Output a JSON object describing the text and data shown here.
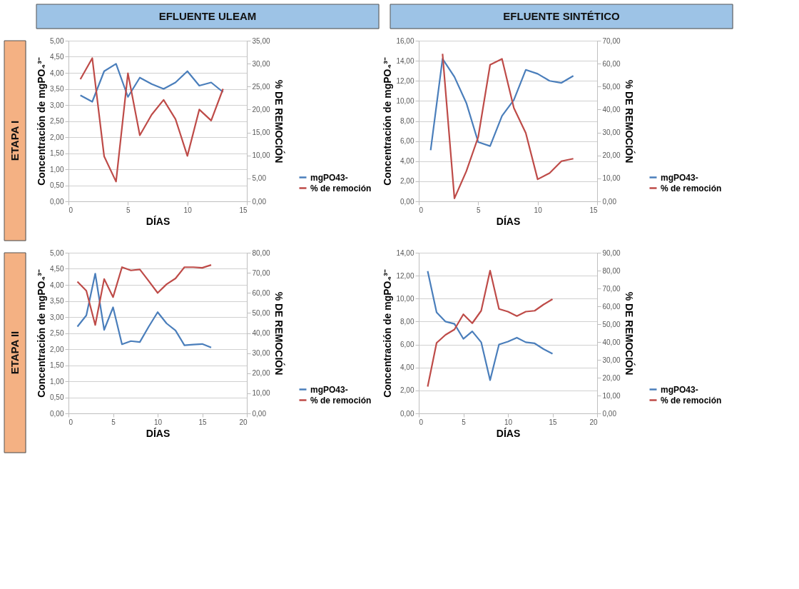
{
  "chart_data": [
    {
      "type": "line",
      "title": "EFLUENTE ULEAM",
      "subtitle": "ETAPA I",
      "xlabel": "DÍAS",
      "ylabel": "Concentración de mgPO₄³⁻",
      "y2label": "% DE REMOCIÓN",
      "grid": "y",
      "legend": "bottom right",
      "x": [
        1,
        2,
        3,
        4,
        5,
        6,
        7,
        8,
        9,
        10,
        11,
        12,
        13
      ],
      "xlim": [
        0,
        15
      ],
      "xticks": [
        0,
        5,
        10,
        15
      ],
      "ylim": [
        0,
        5
      ],
      "yticks": [
        {
          "value": 0,
          "label": "0,00"
        },
        {
          "value": 0.5,
          "label": "0,50"
        },
        {
          "value": 1,
          "label": "1,00"
        },
        {
          "value": 1.5,
          "label": "1,50"
        },
        {
          "value": 2,
          "label": "2,00"
        },
        {
          "value": 2.5,
          "label": "2,50"
        },
        {
          "value": 3,
          "label": "3,00"
        },
        {
          "value": 3.5,
          "label": "3,50"
        },
        {
          "value": 4,
          "label": "4,00"
        },
        {
          "value": 4.5,
          "label": "4,50"
        },
        {
          "value": 5,
          "label": "5,00"
        }
      ],
      "y2lim": [
        0,
        35
      ],
      "y2ticks": [
        {
          "value": 0,
          "label": "0,00"
        },
        {
          "value": 5,
          "label": "5,00"
        },
        {
          "value": 10,
          "label": "10,00"
        },
        {
          "value": 15,
          "label": "15,00"
        },
        {
          "value": 20,
          "label": "20,00"
        },
        {
          "value": 25,
          "label": "25,00"
        },
        {
          "value": 30,
          "label": "30,00"
        },
        {
          "value": 35,
          "label": "35,00"
        }
      ],
      "series": [
        {
          "name": "mgPO43-",
          "color": "#4a7ebb",
          "values": [
            3.3,
            3.1,
            4.05,
            4.28,
            3.25,
            3.85,
            3.65,
            3.5,
            3.7,
            4.05,
            3.6,
            3.7,
            3.4
          ]
        },
        {
          "name": "% de remoción",
          "color": "#be4b48",
          "axis": "y2",
          "values": [
            26.6,
            31.2,
            9.8,
            4.3,
            27.9,
            14.4,
            18.9,
            22.1,
            17.9,
            9.9,
            20.0,
            17.6,
            24.5
          ]
        }
      ]
    },
    {
      "type": "line",
      "title": "EFLUENTE SINTÉTICO",
      "xlabel": "DÍAS",
      "ylabel": "Concentración de mgPO₄³⁻",
      "y2label": "% DE REMOCIÓN",
      "grid": "y",
      "legend": "bottom right",
      "x": [
        1,
        2,
        3,
        4,
        5,
        6,
        7,
        8,
        9,
        10,
        11,
        12,
        13
      ],
      "xlim": [
        0,
        15
      ],
      "xticks": [
        0,
        5,
        10,
        15
      ],
      "ylim": [
        0,
        16
      ],
      "yticks": [
        {
          "value": 0,
          "label": "0,00"
        },
        {
          "value": 2,
          "label": "2,00"
        },
        {
          "value": 4,
          "label": "4,00"
        },
        {
          "value": 6,
          "label": "6,00"
        },
        {
          "value": 8,
          "label": "8,00"
        },
        {
          "value": 10,
          "label": "10,00"
        },
        {
          "value": 12,
          "label": "12,00"
        },
        {
          "value": 14,
          "label": "14,00"
        },
        {
          "value": 16,
          "label": "16,00"
        }
      ],
      "y2lim": [
        0,
        70
      ],
      "y2ticks": [
        {
          "value": 0,
          "label": "0,00"
        },
        {
          "value": 10,
          "label": "10,00"
        },
        {
          "value": 20,
          "label": "20,00"
        },
        {
          "value": 30,
          "label": "30,00"
        },
        {
          "value": 40,
          "label": "40,00"
        },
        {
          "value": 50,
          "label": "50,00"
        },
        {
          "value": 60,
          "label": "60,00"
        },
        {
          "value": 70,
          "label": "70,00"
        }
      ],
      "series": [
        {
          "name": "mgPO43-",
          "color": "#4a7ebb",
          "values": [
            5.1,
            14.2,
            12.4,
            9.8,
            5.9,
            5.5,
            8.5,
            10.1,
            13.1,
            12.7,
            12.0,
            11.8,
            12.5
          ]
        },
        {
          "name": "% de remoción",
          "color": "#be4b48",
          "axis": "y2",
          "x": [
            2,
            3,
            4,
            5,
            6,
            7,
            8,
            9,
            10,
            11,
            12,
            13
          ],
          "values": [
            64.3,
            1.3,
            13.1,
            28,
            59.5,
            62.1,
            40.7,
            29.8,
            9.6,
            12.3,
            17.5,
            18.6
          ]
        }
      ]
    },
    {
      "type": "line",
      "subtitle": "ETAPA II",
      "xlabel": "DÍAS",
      "ylabel": "Concentración de mgPO₄³⁻",
      "y2label": "% DE REMOCIÓN",
      "grid": "y",
      "legend": "bottom right",
      "x": [
        1,
        2,
        3,
        4,
        5,
        6,
        7,
        8,
        9,
        10,
        11,
        12,
        13,
        14,
        15,
        16
      ],
      "xlim": [
        0,
        20
      ],
      "xticks": [
        0,
        5,
        10,
        15,
        20
      ],
      "ylim": [
        0,
        5
      ],
      "yticks": [
        {
          "value": 0,
          "label": "0,00"
        },
        {
          "value": 0.5,
          "label": "0,50"
        },
        {
          "value": 1,
          "label": "1,00"
        },
        {
          "value": 1.5,
          "label": "1,50"
        },
        {
          "value": 2,
          "label": "2,00"
        },
        {
          "value": 2.5,
          "label": "2,50"
        },
        {
          "value": 3,
          "label": "3,00"
        },
        {
          "value": 3.5,
          "label": "3,50"
        },
        {
          "value": 4,
          "label": "4,00"
        },
        {
          "value": 4.5,
          "label": "4,50"
        },
        {
          "value": 5,
          "label": "5,00"
        }
      ],
      "y2lim": [
        0,
        80
      ],
      "y2ticks": [
        {
          "value": 0,
          "label": "0,00"
        },
        {
          "value": 10,
          "label": "10,00"
        },
        {
          "value": 20,
          "label": "20,00"
        },
        {
          "value": 30,
          "label": "30,00"
        },
        {
          "value": 40,
          "label": "40,00"
        },
        {
          "value": 50,
          "label": "50,00"
        },
        {
          "value": 60,
          "label": "60,00"
        },
        {
          "value": 70,
          "label": "70,00"
        },
        {
          "value": 80,
          "label": "80,00"
        }
      ],
      "series": [
        {
          "name": "mgPO43-",
          "color": "#4a7ebb",
          "values": [
            2.7,
            3.05,
            4.35,
            2.6,
            3.3,
            2.15,
            2.25,
            2.22,
            2.7,
            3.15,
            2.8,
            2.58,
            2.12,
            2.14,
            2.16,
            2.05
          ]
        },
        {
          "name": "% de remoción",
          "color": "#be4b48",
          "axis": "y2",
          "values": [
            65.6,
            61.1,
            44.0,
            66.9,
            57.9,
            72.8,
            71.2,
            71.7,
            65.9,
            60.0,
            64.3,
            67.2,
            72.8,
            72.8,
            72.5,
            73.9
          ]
        }
      ]
    },
    {
      "type": "line",
      "xlabel": "DÍAS",
      "ylabel": "Concentración de mgPO₄³⁻",
      "y2label": "% DE REMOCIÓN",
      "grid": "y",
      "legend": "bottom right",
      "x": [
        1,
        2,
        3,
        4,
        5,
        6,
        7,
        8,
        9,
        10,
        11,
        12,
        13,
        14,
        15
      ],
      "xlim": [
        0,
        20
      ],
      "xticks": [
        0,
        5,
        10,
        15,
        20
      ],
      "ylim": [
        0,
        14
      ],
      "yticks": [
        {
          "value": 0,
          "label": "0,00"
        },
        {
          "value": 2,
          "label": "2,00"
        },
        {
          "value": 4,
          "label": "4,00"
        },
        {
          "value": 6,
          "label": "6,00"
        },
        {
          "value": 8,
          "label": "8,00"
        },
        {
          "value": 10,
          "label": "10,00"
        },
        {
          "value": 12,
          "label": "12,00"
        },
        {
          "value": 14,
          "label": "14,00"
        }
      ],
      "y2lim": [
        0,
        90
      ],
      "y2ticks": [
        {
          "value": 0,
          "label": "0,00"
        },
        {
          "value": 10,
          "label": "10,00"
        },
        {
          "value": 20,
          "label": "20,00"
        },
        {
          "value": 30,
          "label": "30,00"
        },
        {
          "value": 40,
          "label": "40,00"
        },
        {
          "value": 50,
          "label": "50,00"
        },
        {
          "value": 60,
          "label": "60,00"
        },
        {
          "value": 70,
          "label": "70,00"
        },
        {
          "value": 80,
          "label": "80,00"
        },
        {
          "value": 90,
          "label": "90,00"
        }
      ],
      "series": [
        {
          "name": "mgPO43-",
          "color": "#4a7ebb",
          "values": [
            12.4,
            8.8,
            8.0,
            7.8,
            6.5,
            7.15,
            6.2,
            2.9,
            6.0,
            6.25,
            6.6,
            6.2,
            6.1,
            5.6,
            5.2
          ]
        },
        {
          "name": "% de remoción",
          "color": "#be4b48",
          "axis": "y2",
          "values": [
            15,
            39.5,
            44,
            47,
            55.5,
            50.5,
            57.5,
            80,
            58.5,
            57,
            54.5,
            57,
            57.5,
            61,
            64
          ]
        }
      ]
    }
  ]
}
